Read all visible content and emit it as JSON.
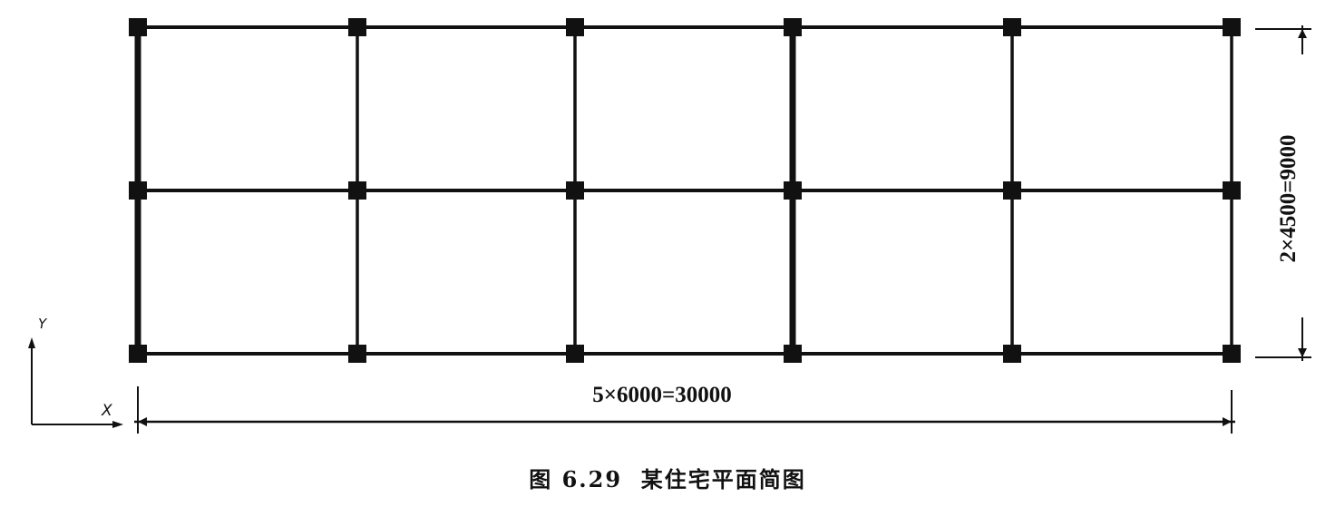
{
  "plan": {
    "bays_x": 5,
    "bays_y": 2,
    "bay_width_mm": 6000,
    "bay_depth_mm": 4500
  },
  "dimensions": {
    "horizontal": "5×6000=30000",
    "vertical": "2×4500=9000"
  },
  "axes": {
    "x_label": "X",
    "y_label": "Y"
  },
  "caption": "图 6.29  某住宅平面简图",
  "colors": {
    "line": "#111111",
    "background": "#ffffff"
  }
}
